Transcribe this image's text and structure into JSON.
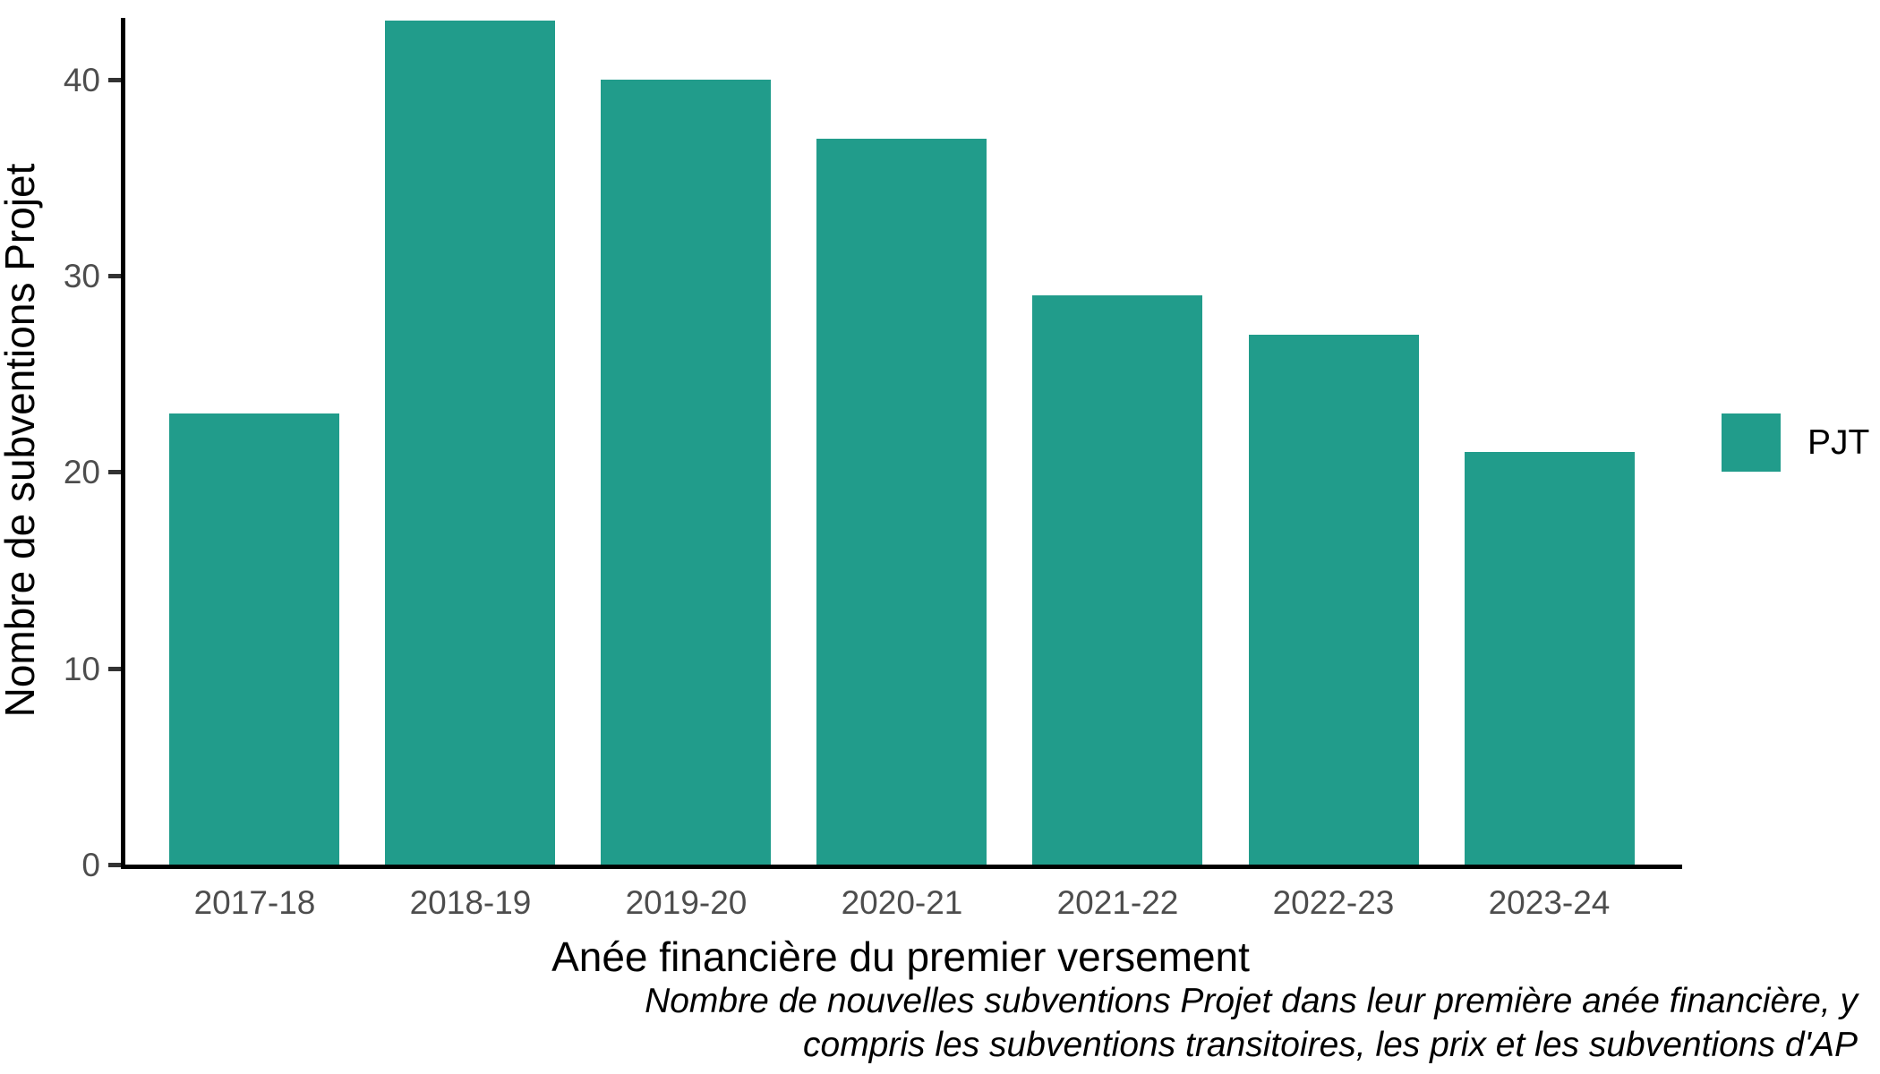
{
  "chart_data": {
    "type": "bar",
    "categories": [
      "2017-18",
      "2018-19",
      "2019-20",
      "2020-21",
      "2021-22",
      "2022-23",
      "2023-24"
    ],
    "values": [
      23,
      43,
      40,
      37,
      29,
      27,
      21
    ],
    "series_name": "PJT",
    "title": "",
    "xlabel": "Anée financière du premier versement",
    "ylabel": "Nombre de subventions Projet",
    "yticks": [
      0,
      10,
      20,
      30,
      40
    ],
    "ylim": [
      0,
      43.2
    ],
    "grid": "off",
    "legend_position": "right",
    "caption_lines": [
      "Nombre de nouvelles subventions Projet dans leur première anée financière, y",
      "compris les subventions transitoires, les prix et les subventions d'AP"
    ],
    "colors": {
      "bar_fill": "#219C8B",
      "axis_line": "#000000",
      "tick_text": "#4d4d4d",
      "title_text": "#000000"
    }
  },
  "legend": {
    "label": "PJT",
    "swatch_name": "pjt-color-swatch"
  }
}
